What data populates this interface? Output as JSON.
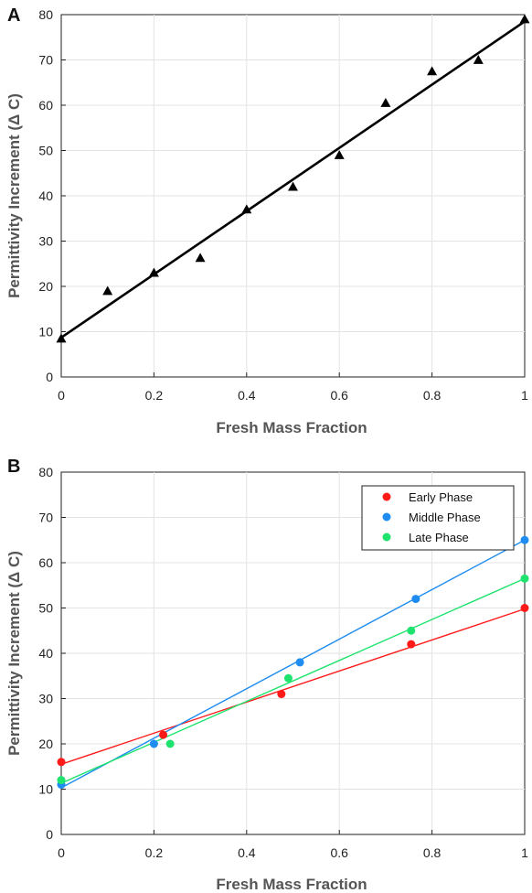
{
  "chart_data": [
    {
      "type": "scatter",
      "panel_label": "A",
      "xlabel": "Fresh Mass Fraction",
      "ylabel": "Permittivity Increment (Δ C)",
      "xlim": [
        0,
        1
      ],
      "ylim": [
        0,
        80
      ],
      "xticks": [
        "0",
        "0.2",
        "0.4",
        "0.6",
        "0.8",
        "1"
      ],
      "xtick_values": [
        0,
        0.2,
        0.4,
        0.6,
        0.8,
        1
      ],
      "yticks": [
        "0",
        "10",
        "20",
        "30",
        "40",
        "50",
        "60",
        "70",
        "80"
      ],
      "ytick_values": [
        0,
        10,
        20,
        30,
        40,
        50,
        60,
        70,
        80
      ],
      "grid": true,
      "series": [
        {
          "marker": "triangle",
          "color": "#000000",
          "x": [
            0,
            0.1,
            0.2,
            0.3,
            0.4,
            0.5,
            0.6,
            0.7,
            0.8,
            0.9,
            1.0
          ],
          "y": [
            8.5,
            19,
            23,
            26.3,
            37,
            42,
            49,
            60.5,
            67.5,
            70,
            79
          ],
          "fit": {
            "x": [
              0,
              1
            ],
            "y": [
              8.7,
              78.5
            ]
          }
        }
      ]
    },
    {
      "type": "scatter",
      "panel_label": "B",
      "xlabel": "Fresh Mass Fraction",
      "ylabel": "Permittivity Increment (Δ C)",
      "xlim": [
        0,
        1
      ],
      "ylim": [
        0,
        80
      ],
      "xticks": [
        "0",
        "0.2",
        "0.4",
        "0.6",
        "0.8",
        "1"
      ],
      "xtick_values": [
        0,
        0.2,
        0.4,
        0.6,
        0.8,
        1
      ],
      "yticks": [
        "0",
        "10",
        "20",
        "30",
        "40",
        "50",
        "60",
        "70",
        "80"
      ],
      "ytick_values": [
        0,
        10,
        20,
        30,
        40,
        50,
        60,
        70,
        80
      ],
      "grid": true,
      "legend_position": "top-right",
      "series": [
        {
          "name": "Early Phase",
          "color": "#ff1a1a",
          "x": [
            0,
            0.22,
            0.475,
            0.755,
            1.0
          ],
          "y": [
            16,
            22,
            31,
            42,
            50
          ],
          "fit": {
            "x": [
              0,
              1
            ],
            "y": [
              15.5,
              49.8
            ]
          }
        },
        {
          "name": "Middle Phase",
          "color": "#1e8cf0",
          "x": [
            0,
            0.2,
            0.515,
            0.765,
            1.0
          ],
          "y": [
            11,
            20,
            38,
            52,
            65
          ],
          "fit": {
            "x": [
              0,
              1
            ],
            "y": [
              10.3,
              65
            ]
          }
        },
        {
          "name": "Late Phase",
          "color": "#1ee36e",
          "x": [
            0,
            0.235,
            0.49,
            0.755,
            1.0
          ],
          "y": [
            12,
            20,
            34.5,
            45,
            56.5
          ],
          "fit": {
            "x": [
              0,
              1
            ],
            "y": [
              11.3,
              56.5
            ]
          }
        }
      ]
    }
  ]
}
